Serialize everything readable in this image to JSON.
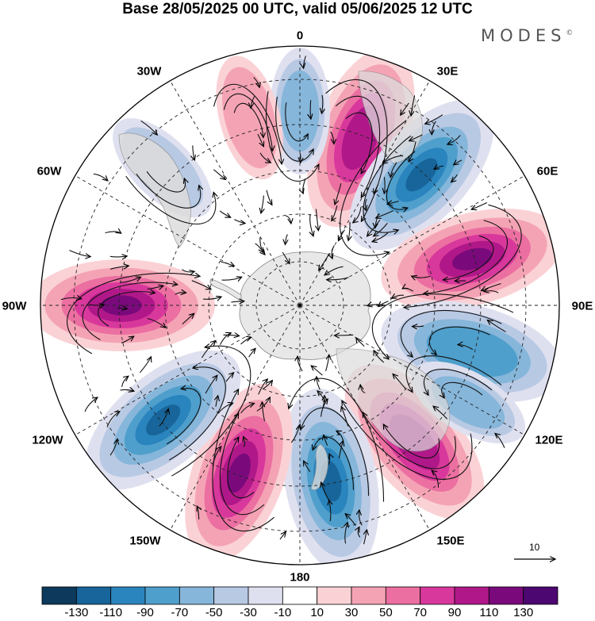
{
  "header": {
    "title": "Base 28/05/2025 00 UTC, valid 05/06/2025 12 UTC",
    "brand": "MODES",
    "brand_mark": "©"
  },
  "longitude_labels": [
    {
      "id": "lon-0",
      "text": "0"
    },
    {
      "id": "lon-30e",
      "text": "30E"
    },
    {
      "id": "lon-60e",
      "text": "60E"
    },
    {
      "id": "lon-90e",
      "text": "90E"
    },
    {
      "id": "lon-120e",
      "text": "120E"
    },
    {
      "id": "lon-150e",
      "text": "150E"
    },
    {
      "id": "lon-180",
      "text": "180"
    },
    {
      "id": "lon-150w",
      "text": "150W"
    },
    {
      "id": "lon-120w",
      "text": "120W"
    },
    {
      "id": "lon-90w",
      "text": "90W"
    },
    {
      "id": "lon-60w",
      "text": "60W"
    },
    {
      "id": "lon-30w",
      "text": "30W"
    }
  ],
  "reference_vector": {
    "label": "10"
  },
  "colorbar": {
    "ticks": [
      "-130",
      "-110",
      "-90",
      "-70",
      "-50",
      "-30",
      "-10",
      "10",
      "30",
      "50",
      "70",
      "90",
      "110",
      "130"
    ],
    "colors": [
      "#0d3a5c",
      "#17659a",
      "#2a84bd",
      "#4f9fcc",
      "#86b6da",
      "#b8c9e4",
      "#dfe0ef",
      "#ffffff",
      "#fad2d6",
      "#f4a3b5",
      "#ec6fa1",
      "#d8389b",
      "#b01889",
      "#7a0a7c",
      "#4c0770"
    ]
  },
  "anomaly_cells": [
    {
      "lon": 20,
      "value": 90
    },
    {
      "lon": 43,
      "value": -110
    },
    {
      "lon": 75,
      "value": 110
    },
    {
      "lon": 105,
      "value": -70
    },
    {
      "lon": 140,
      "value": 90
    },
    {
      "lon": 170,
      "value": -110
    },
    {
      "lon": -160,
      "value": 110
    },
    {
      "lon": -130,
      "value": -110
    },
    {
      "lon": -90,
      "value": 110
    },
    {
      "lon": 0,
      "value": -50
    },
    {
      "lon": -45,
      "value": -30
    },
    {
      "lon": -15,
      "value": 30
    },
    {
      "lon": 120,
      "value": -50
    }
  ]
}
